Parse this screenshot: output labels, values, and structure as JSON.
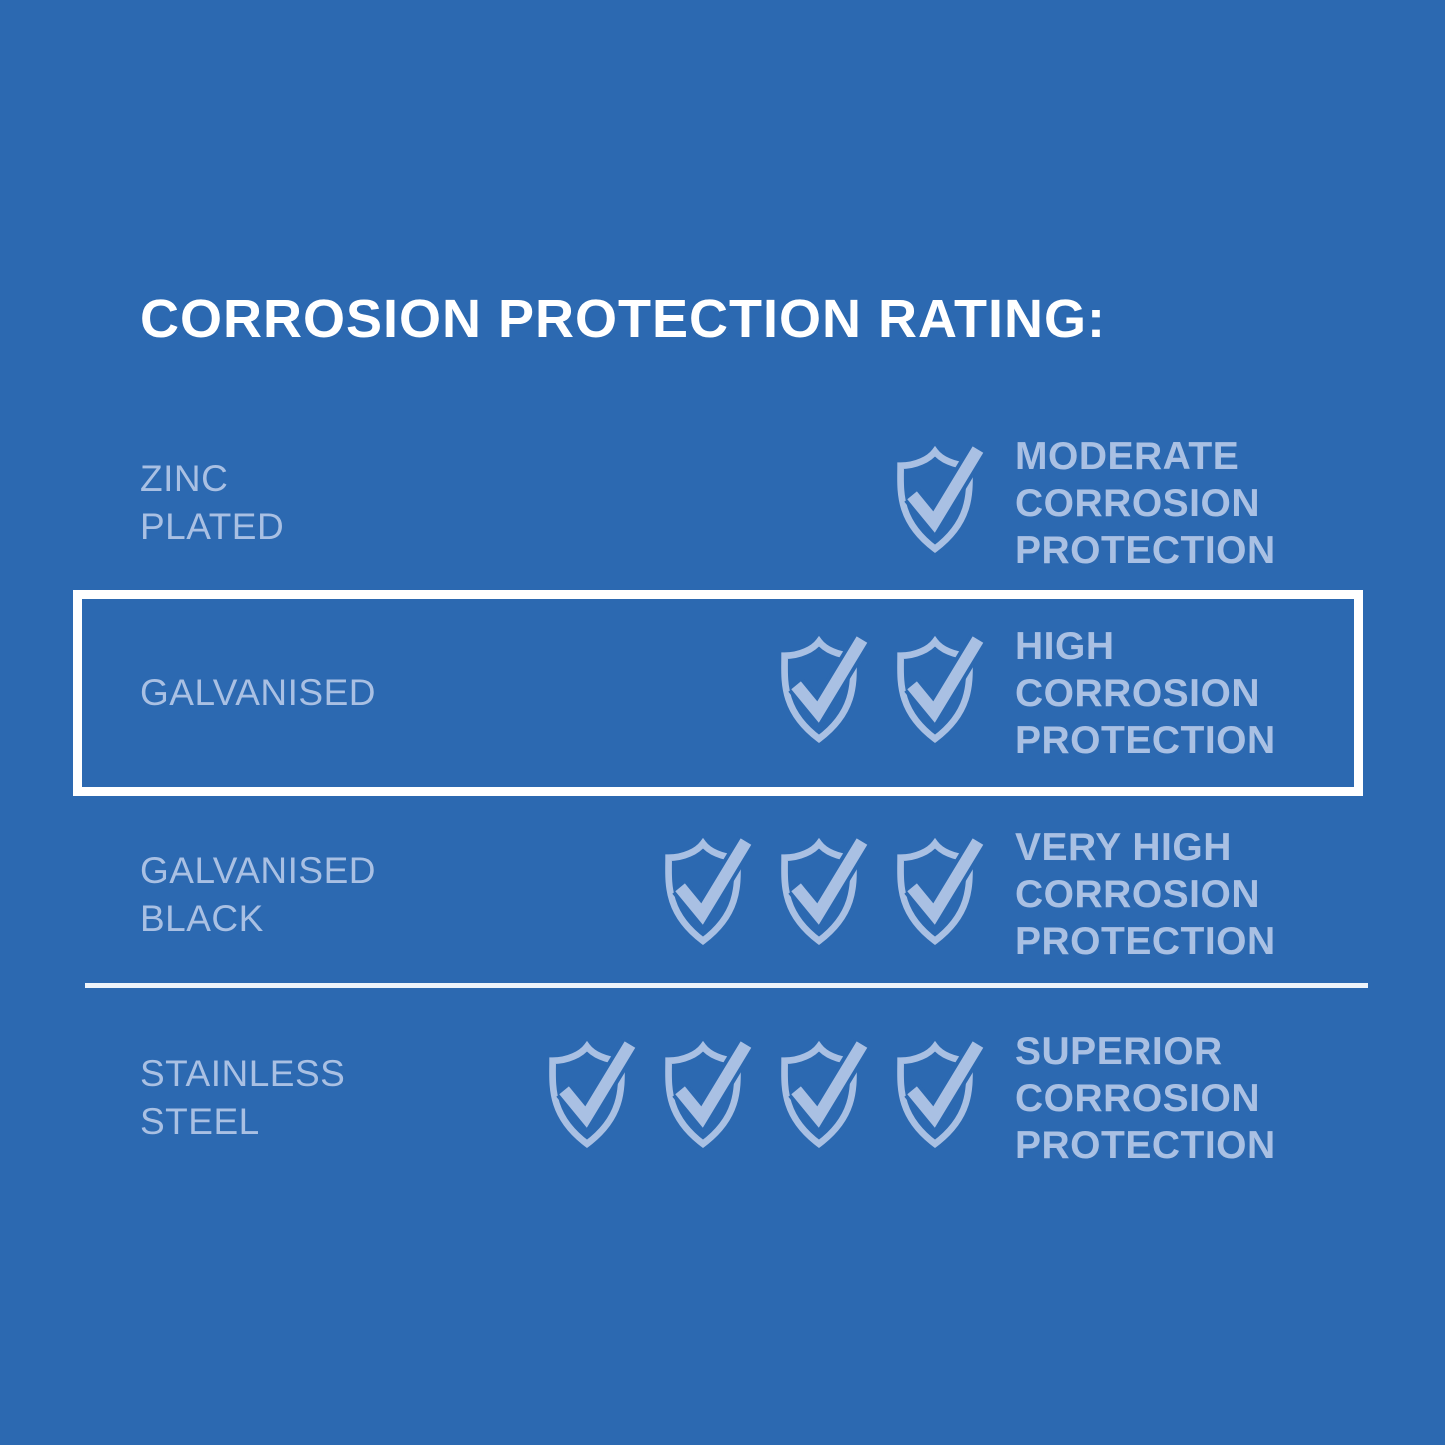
{
  "colors": {
    "background": "#2c69b1",
    "light_accent": "#a9c0e3",
    "white": "#ffffff",
    "divider": "#eef4fb"
  },
  "title": "CORROSION PROTECTION RATING:",
  "table": {
    "shield_icon": "shield-check-icon",
    "rows": [
      {
        "id": "zinc-plated",
        "label_lines": [
          "ZINC",
          "PLATED"
        ],
        "shield_count": 1,
        "rating_lines": [
          "MODERATE",
          "CORROSION",
          "PROTECTION"
        ],
        "highlighted": false
      },
      {
        "id": "galvanised",
        "label_lines": [
          "GALVANISED"
        ],
        "shield_count": 2,
        "rating_lines": [
          "HIGH",
          "CORROSION",
          "PROTECTION"
        ],
        "highlighted": true
      },
      {
        "id": "galvanised-black",
        "label_lines": [
          "GALVANISED",
          "BLACK"
        ],
        "shield_count": 3,
        "rating_lines": [
          "VERY HIGH",
          "CORROSION",
          "PROTECTION"
        ],
        "highlighted": false
      },
      {
        "id": "stainless-steel",
        "label_lines": [
          "STAINLESS",
          "STEEL"
        ],
        "shield_count": 4,
        "rating_lines": [
          "SUPERIOR",
          "CORROSION",
          "PROTECTION"
        ],
        "highlighted": false
      }
    ]
  }
}
